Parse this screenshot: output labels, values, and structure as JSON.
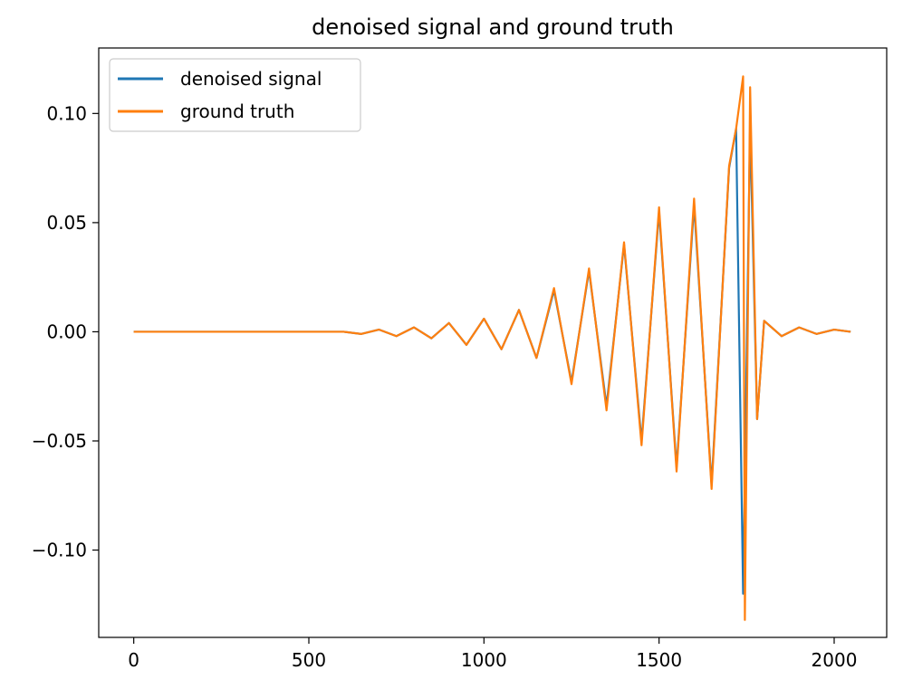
{
  "chart_data": {
    "type": "line",
    "title": "denoised signal and ground truth",
    "xlabel": "",
    "ylabel": "",
    "xlim": [
      -100,
      2150
    ],
    "ylim": [
      -0.14,
      0.13
    ],
    "xticks": [
      0,
      500,
      1000,
      1500,
      2000
    ],
    "xtick_labels": [
      "0",
      "500",
      "1000",
      "1500",
      "2000"
    ],
    "yticks": [
      -0.1,
      -0.05,
      0.0,
      0.05,
      0.1
    ],
    "ytick_labels": [
      "−0.10",
      "−0.05",
      "0.00",
      "0.05",
      "0.10"
    ],
    "grid": false,
    "legend_position": "top-left",
    "series": [
      {
        "name": "denoised signal",
        "color": "#1f77b4",
        "x": [
          0,
          600,
          650,
          700,
          750,
          800,
          850,
          900,
          950,
          1000,
          1050,
          1100,
          1150,
          1200,
          1250,
          1300,
          1350,
          1400,
          1450,
          1500,
          1550,
          1600,
          1650,
          1700,
          1720,
          1740,
          1760,
          1780,
          1800,
          1850,
          1900,
          1950,
          2000,
          2047
        ],
        "y": [
          0.0,
          0.0,
          -0.001,
          0.001,
          -0.002,
          0.002,
          -0.003,
          0.004,
          -0.006,
          0.006,
          -0.008,
          0.01,
          -0.012,
          0.019,
          -0.023,
          0.028,
          -0.034,
          0.04,
          -0.05,
          0.055,
          -0.062,
          0.058,
          -0.07,
          0.075,
          0.093,
          -0.12,
          0.095,
          -0.04,
          0.005,
          -0.002,
          0.002,
          -0.001,
          0.001,
          0.0
        ]
      },
      {
        "name": "ground truth",
        "color": "#ff7f0e",
        "x": [
          0,
          600,
          650,
          700,
          750,
          800,
          850,
          900,
          950,
          1000,
          1050,
          1100,
          1150,
          1200,
          1250,
          1300,
          1350,
          1400,
          1450,
          1500,
          1550,
          1600,
          1650,
          1700,
          1720,
          1740,
          1745,
          1760,
          1780,
          1800,
          1850,
          1900,
          1950,
          2000,
          2047
        ],
        "y": [
          0.0,
          0.0,
          -0.001,
          0.001,
          -0.002,
          0.002,
          -0.003,
          0.004,
          -0.006,
          0.006,
          -0.008,
          0.01,
          -0.012,
          0.02,
          -0.024,
          0.029,
          -0.036,
          0.041,
          -0.052,
          0.057,
          -0.064,
          0.061,
          -0.072,
          0.076,
          0.093,
          0.117,
          -0.132,
          0.112,
          -0.04,
          0.005,
          -0.002,
          0.002,
          -0.001,
          0.001,
          0.0
        ]
      }
    ]
  }
}
